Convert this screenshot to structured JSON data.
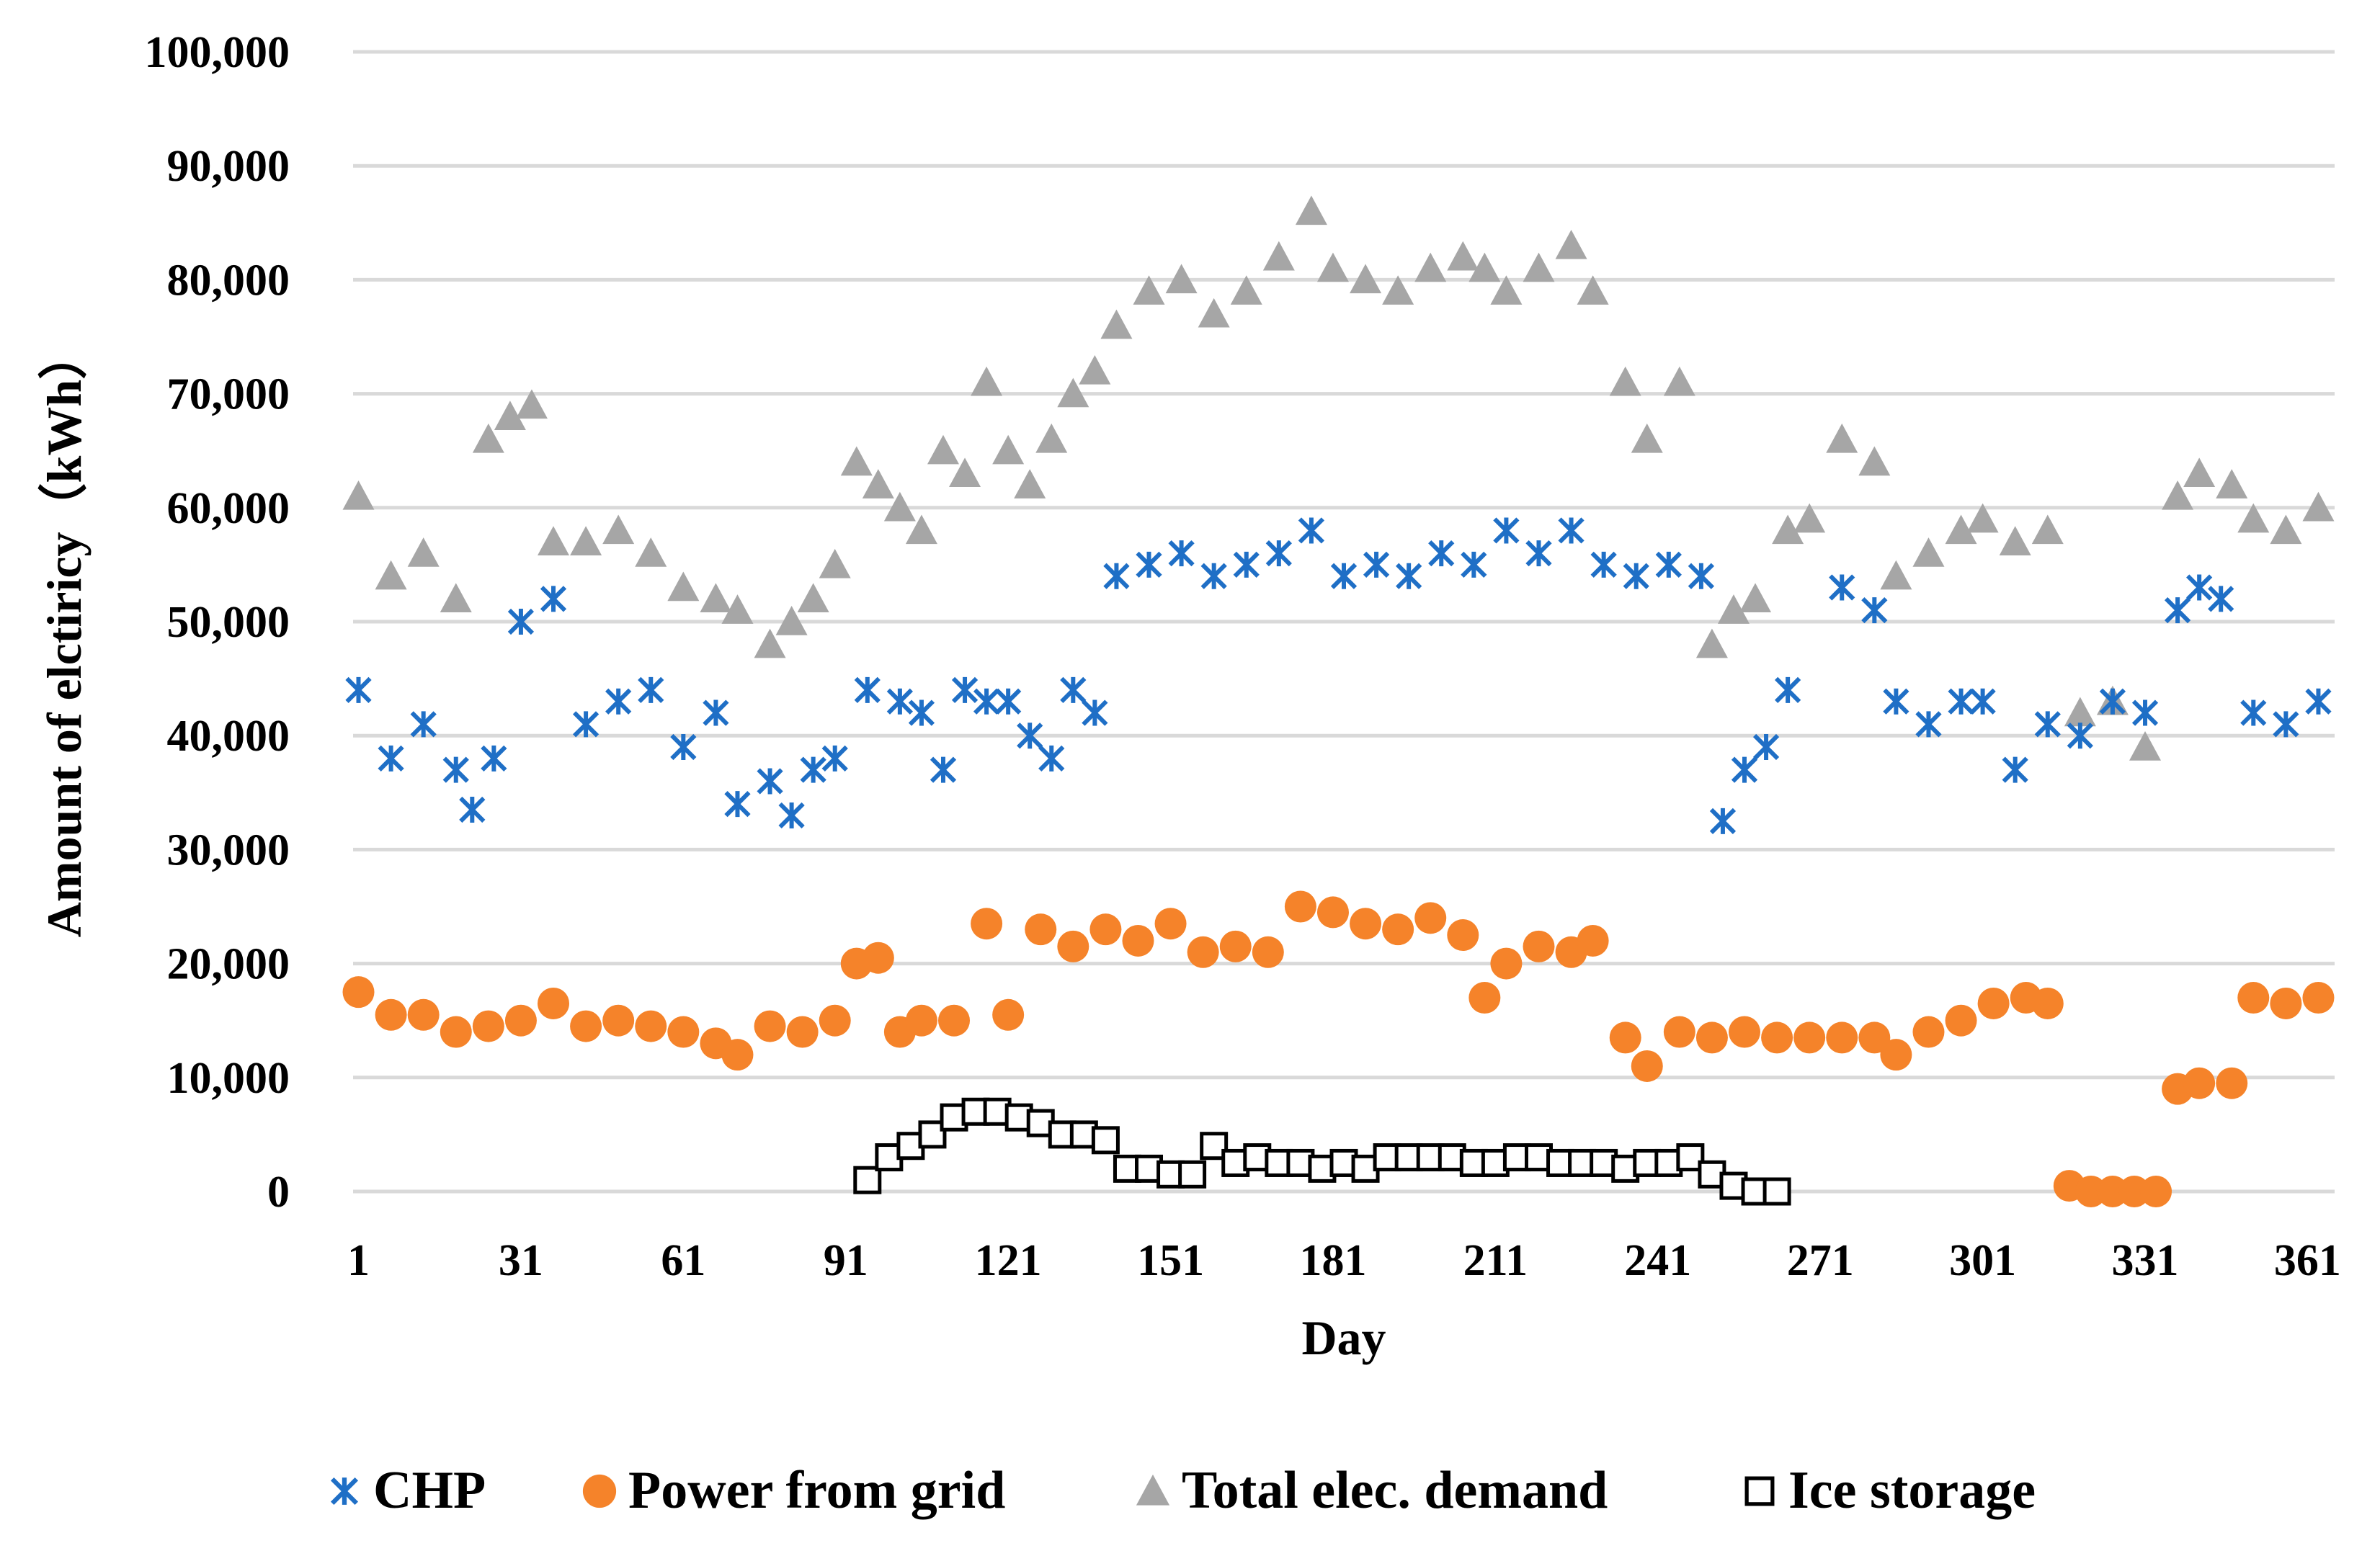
{
  "chart_data": {
    "type": "scatter",
    "title": "",
    "xlabel": "Day",
    "ylabel": "Amount of elctiricy（kWh）",
    "xlim": [
      0,
      366
    ],
    "ylim": [
      0,
      100000
    ],
    "x_ticks": [
      1,
      31,
      61,
      91,
      121,
      151,
      181,
      211,
      241,
      271,
      301,
      331,
      361
    ],
    "y_ticks": [
      0,
      10000,
      20000,
      30000,
      40000,
      50000,
      60000,
      70000,
      80000,
      90000,
      100000
    ],
    "x_tick_labels": [
      "1",
      "31",
      "61",
      "91",
      "121",
      "151",
      "181",
      "211",
      "241",
      "271",
      "301",
      "331",
      "361"
    ],
    "y_tick_labels": [
      "0",
      "10,000",
      "20,000",
      "30,000",
      "40,000",
      "50,000",
      "60,000",
      "70,000",
      "80,000",
      "90,000",
      "100,000"
    ],
    "grid": true,
    "legend_position": "bottom",
    "series": [
      {
        "name": "CHP",
        "marker": "asterisk",
        "color": "#1f6fc6",
        "x": [
          1,
          7,
          13,
          19,
          22,
          26,
          31,
          37,
          43,
          49,
          55,
          61,
          67,
          71,
          77,
          81,
          85,
          89,
          95,
          101,
          105,
          109,
          113,
          117,
          121,
          125,
          129,
          133,
          137,
          141,
          147,
          153,
          159,
          165,
          171,
          177,
          183,
          189,
          195,
          201,
          207,
          213,
          219,
          225,
          231,
          237,
          243,
          249,
          253,
          257,
          261,
          265,
          275,
          281,
          285,
          291,
          297,
          301,
          307,
          313,
          319,
          325,
          331,
          337,
          341,
          345,
          351,
          357,
          363
        ],
        "y": [
          44000,
          38000,
          41000,
          37000,
          33500,
          38000,
          50000,
          52000,
          41000,
          43000,
          44000,
          39000,
          42000,
          34000,
          36000,
          33000,
          37000,
          38000,
          44000,
          43000,
          42000,
          37000,
          44000,
          43000,
          43000,
          40000,
          38000,
          44000,
          42000,
          54000,
          55000,
          56000,
          54000,
          55000,
          56000,
          58000,
          54000,
          55000,
          54000,
          56000,
          55000,
          58000,
          56000,
          58000,
          55000,
          54000,
          55000,
          54000,
          32500,
          37000,
          39000,
          44000,
          53000,
          51000,
          43000,
          41000,
          43000,
          43000,
          37000,
          41000,
          40000,
          43000,
          42000,
          51000,
          53000,
          52000,
          42000,
          41000,
          43000
        ]
      },
      {
        "name": "Power from grid",
        "marker": "circle",
        "color": "#f5832a",
        "x": [
          1,
          7,
          13,
          19,
          25,
          31,
          37,
          43,
          49,
          55,
          61,
          67,
          71,
          77,
          83,
          89,
          93,
          97,
          101,
          105,
          111,
          117,
          121,
          127,
          133,
          139,
          145,
          151,
          157,
          163,
          169,
          175,
          181,
          187,
          193,
          199,
          205,
          209,
          213,
          219,
          225,
          229,
          235,
          239,
          245,
          251,
          257,
          263,
          269,
          275,
          281,
          285,
          291,
          297,
          303,
          309,
          313,
          317,
          321,
          325,
          329,
          333,
          337,
          341,
          347,
          351,
          357,
          363
        ],
        "y": [
          17500,
          15500,
          15500,
          14000,
          14500,
          15000,
          16500,
          14500,
          15000,
          14500,
          14000,
          13000,
          12000,
          14500,
          14000,
          15000,
          20000,
          20500,
          14000,
          15000,
          15000,
          23500,
          15500,
          23000,
          21500,
          23000,
          22000,
          23500,
          21000,
          21500,
          21000,
          25000,
          24500,
          23500,
          23000,
          24000,
          22500,
          17000,
          20000,
          21500,
          21000,
          22000,
          13500,
          11000,
          14000,
          13500,
          14000,
          13500,
          13500,
          13500,
          13500,
          12000,
          14000,
          15000,
          16500,
          17000,
          16500,
          500,
          0,
          0,
          0,
          0,
          9000,
          9500,
          9500,
          17000,
          16500,
          17000
        ]
      },
      {
        "name": "Total elec. demand",
        "marker": "triangle",
        "color": "#a6a6a6",
        "x": [
          1,
          7,
          13,
          19,
          25,
          29,
          33,
          37,
          43,
          49,
          55,
          61,
          67,
          71,
          77,
          81,
          85,
          89,
          93,
          97,
          101,
          105,
          109,
          113,
          117,
          121,
          125,
          129,
          133,
          137,
          141,
          147,
          153,
          159,
          165,
          171,
          177,
          181,
          187,
          193,
          199,
          205,
          209,
          213,
          219,
          225,
          229,
          235,
          239,
          245,
          251,
          255,
          259,
          265,
          269,
          275,
          281,
          285,
          291,
          297,
          301,
          307,
          313,
          319,
          325,
          331,
          337,
          341,
          347,
          351,
          357,
          363
        ],
        "y": [
          61000,
          54000,
          56000,
          52000,
          66000,
          68000,
          69000,
          57000,
          57000,
          58000,
          56000,
          53000,
          52000,
          51000,
          48000,
          50000,
          52000,
          55000,
          64000,
          62000,
          60000,
          58000,
          65000,
          63000,
          71000,
          65000,
          62000,
          66000,
          70000,
          72000,
          76000,
          79000,
          80000,
          77000,
          79000,
          82000,
          86000,
          81000,
          80000,
          79000,
          81000,
          82000,
          81000,
          79000,
          81000,
          83000,
          79000,
          71000,
          66000,
          71000,
          48000,
          51000,
          52000,
          58000,
          59000,
          66000,
          64000,
          54000,
          56000,
          58000,
          59000,
          57000,
          58000,
          42000,
          43000,
          39000,
          61000,
          63000,
          62000,
          59000,
          58000,
          60000
        ]
      },
      {
        "name": "Ice storage",
        "marker": "square",
        "color": "#000000",
        "x": [
          95,
          99,
          103,
          107,
          111,
          115,
          119,
          123,
          127,
          131,
          135,
          139,
          143,
          147,
          151,
          155,
          159,
          163,
          167,
          171,
          175,
          179,
          183,
          187,
          191,
          195,
          199,
          203,
          207,
          211,
          215,
          219,
          223,
          227,
          231,
          235,
          239,
          243,
          247,
          251,
          255,
          259,
          263
        ],
        "y": [
          1000,
          3000,
          4000,
          5000,
          6500,
          7000,
          7000,
          6500,
          6000,
          5000,
          5000,
          4500,
          2000,
          2000,
          1500,
          1500,
          4000,
          2500,
          3000,
          2500,
          2500,
          2000,
          2500,
          2000,
          3000,
          3000,
          3000,
          3000,
          2500,
          2500,
          3000,
          3000,
          2500,
          2500,
          2500,
          2000,
          2500,
          2500,
          3000,
          1500,
          500,
          0,
          0
        ]
      }
    ]
  }
}
